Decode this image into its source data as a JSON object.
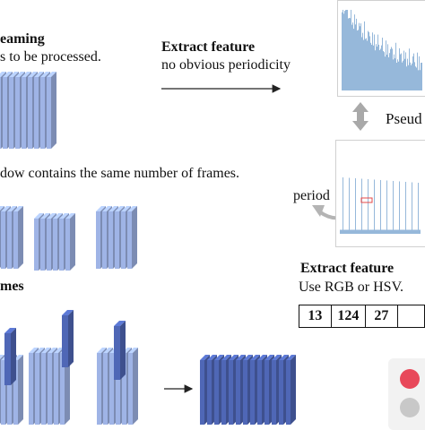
{
  "labels": {
    "streaming_title": "eaming",
    "streaming_subtitle": "s to be processed.",
    "window_caption": "dow contains the same number of frames.",
    "frames_label": "mes",
    "extract_top_title": "Extract feature",
    "extract_top_subtitle": "no obvious periodicity",
    "pseudo_label": "Pseud",
    "period_label": "period",
    "extract_bottom_title": "Extract feature",
    "extract_bottom_subtitle": "Use RGB or HSV."
  },
  "feature_values": [
    "13",
    "124",
    "27",
    ""
  ],
  "colors": {
    "frame_light": "#9fb4e6",
    "frame_dark": "#4f67b6",
    "plot_fill": "#8ab0d6",
    "legend_red": "#e8485a",
    "legend_gray": "#c8c8c8"
  },
  "icons": [
    "double-arrow-icon",
    "curved-arrow-icon",
    "right-arrow-icon"
  ]
}
